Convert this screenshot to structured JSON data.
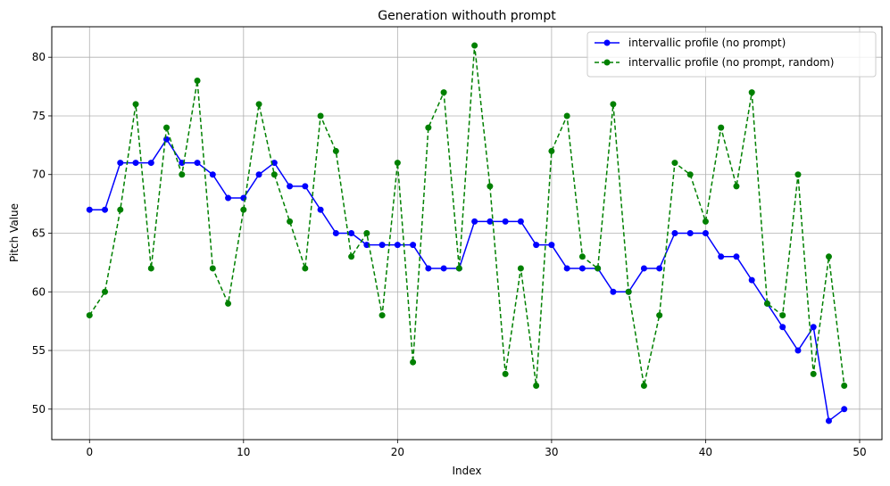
{
  "chart_data": {
    "type": "line",
    "title": "Generation withouth prompt",
    "xlabel": "Index",
    "ylabel": "Pitch Value",
    "xlim": [
      -2.45,
      51.45
    ],
    "ylim": [
      47.4,
      82.6
    ],
    "xticks": [
      0,
      10,
      20,
      30,
      40,
      50
    ],
    "yticks": [
      50,
      55,
      60,
      65,
      70,
      75,
      80
    ],
    "grid": true,
    "legend_position": "top-right",
    "x": [
      0,
      1,
      2,
      3,
      4,
      5,
      6,
      7,
      8,
      9,
      10,
      11,
      12,
      13,
      14,
      15,
      16,
      17,
      18,
      19,
      20,
      21,
      22,
      23,
      24,
      25,
      26,
      27,
      28,
      29,
      30,
      31,
      32,
      33,
      34,
      35,
      36,
      37,
      38,
      39,
      40,
      41,
      42,
      43,
      44,
      45,
      46,
      47,
      48,
      49
    ],
    "series": [
      {
        "name": "intervallic profile (no prompt)",
        "color": "#0000ff",
        "linestyle": "solid",
        "marker": "circle",
        "values": [
          67,
          67,
          71,
          71,
          71,
          73,
          71,
          71,
          70,
          68,
          68,
          70,
          71,
          69,
          69,
          67,
          65,
          65,
          64,
          64,
          64,
          64,
          62,
          62,
          62,
          66,
          66,
          66,
          66,
          64,
          64,
          62,
          62,
          62,
          60,
          60,
          62,
          62,
          65,
          65,
          65,
          63,
          63,
          61,
          59,
          57,
          55,
          57,
          49,
          50
        ]
      },
      {
        "name": "intervallic profile (no prompt, random)",
        "color": "#008000",
        "linestyle": "dashed",
        "marker": "circle",
        "values": [
          58,
          60,
          67,
          76,
          62,
          74,
          70,
          78,
          62,
          59,
          67,
          76,
          70,
          66,
          62,
          75,
          72,
          63,
          65,
          58,
          71,
          54,
          74,
          77,
          62,
          81,
          69,
          53,
          62,
          52,
          72,
          75,
          63,
          62,
          76,
          60,
          52,
          58,
          71,
          70,
          66,
          74,
          69,
          77,
          59,
          58,
          70,
          53,
          63,
          52
        ]
      }
    ]
  }
}
